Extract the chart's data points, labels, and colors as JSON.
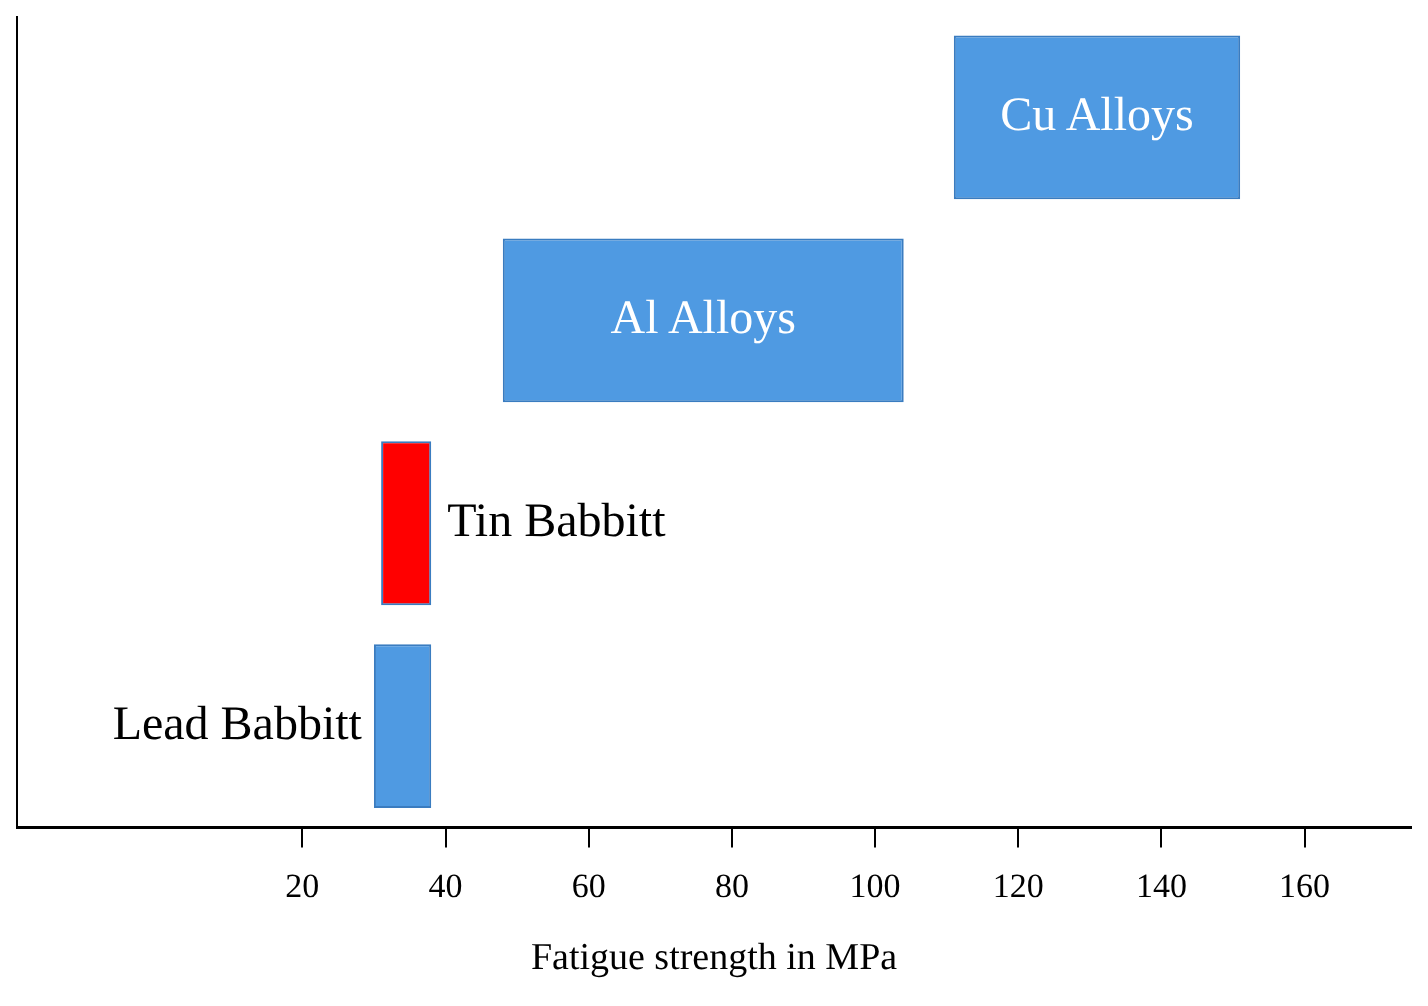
{
  "chart_data": {
    "type": "bar",
    "orientation": "horizontal",
    "xlabel": "Fatigue strength in MPa",
    "categories": [
      "Cu Alloys",
      "Al Alloys",
      "Tin Babbitt",
      "Lead Babbitt"
    ],
    "base": [
      111,
      48,
      31,
      30
    ],
    "values": [
      40,
      56,
      7,
      8
    ],
    "colors": [
      "#4f9ae2",
      "#4f9ae2",
      "#ff0000",
      "#4f9ae2"
    ],
    "xlim": [
      -20,
      175
    ],
    "xticks": [
      20,
      40,
      60,
      80,
      100,
      120,
      140,
      160
    ],
    "tick_labels": "x",
    "grid": false,
    "legend": false
  }
}
